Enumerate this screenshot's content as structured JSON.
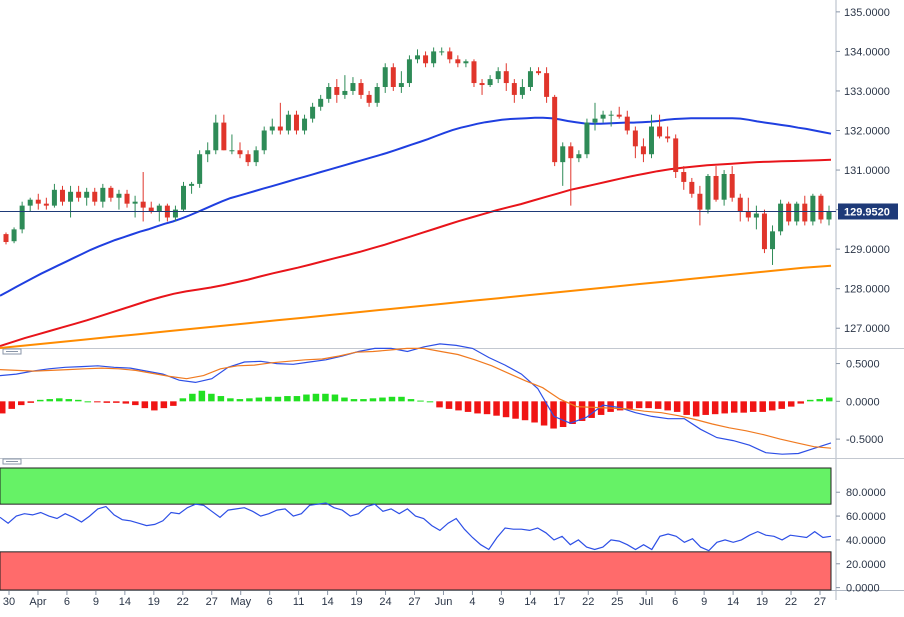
{
  "chart_data": [
    {
      "type": "candlestick",
      "panel": "price",
      "y_axis_ticks": [
        "135.0000",
        "134.0000",
        "133.0000",
        "132.0000",
        "131.0000",
        "130.0000",
        "129.0000",
        "128.0000",
        "127.0000"
      ],
      "ylim": [
        126.5,
        135.3
      ],
      "current_price": "129.9520",
      "x_axis_labels": [
        "30",
        "Apr",
        "6",
        "9",
        "14",
        "19",
        "22",
        "27",
        "May",
        "6",
        "11",
        "14",
        "19",
        "24",
        "27",
        "Jun",
        "4",
        "9",
        "14",
        "17",
        "22",
        "25",
        "Jul",
        "6",
        "9",
        "14",
        "19",
        "22",
        "27"
      ],
      "candles": [
        [
          129.38,
          129.42,
          129.12,
          129.18
        ],
        [
          129.2,
          129.55,
          129.15,
          129.5
        ],
        [
          129.5,
          130.2,
          129.4,
          130.1
        ],
        [
          130.1,
          130.3,
          129.95,
          130.25
        ],
        [
          130.25,
          130.4,
          130.0,
          130.15
        ],
        [
          130.15,
          130.3,
          130.0,
          130.1
        ],
        [
          130.1,
          130.65,
          130.05,
          130.5
        ],
        [
          130.5,
          130.6,
          130.1,
          130.2
        ],
        [
          130.2,
          130.6,
          129.8,
          130.45
        ],
        [
          130.45,
          130.6,
          130.2,
          130.3
        ],
        [
          130.3,
          130.55,
          130.1,
          130.45
        ],
        [
          130.45,
          130.55,
          130.1,
          130.2
        ],
        [
          130.2,
          130.65,
          130.05,
          130.55
        ],
        [
          130.55,
          130.6,
          130.2,
          130.3
        ],
        [
          130.3,
          130.5,
          130.0,
          130.4
        ],
        [
          130.4,
          130.5,
          130.05,
          130.15
        ],
        [
          130.15,
          130.35,
          129.8,
          130.2
        ],
        [
          130.2,
          130.95,
          129.7,
          130.05
        ],
        [
          130.05,
          130.2,
          129.9,
          129.95
        ],
        [
          129.95,
          130.15,
          129.7,
          130.1
        ],
        [
          130.1,
          130.15,
          129.7,
          129.8
        ],
        [
          129.8,
          130.1,
          129.7,
          130.0
        ],
        [
          130.0,
          130.7,
          129.95,
          130.6
        ],
        [
          130.6,
          130.7,
          130.4,
          130.65
        ],
        [
          130.65,
          131.5,
          130.55,
          131.4
        ],
        [
          131.4,
          131.7,
          131.2,
          131.5
        ],
        [
          131.5,
          132.4,
          131.4,
          132.2
        ],
        [
          132.2,
          132.4,
          131.5,
          131.5
        ],
        [
          131.5,
          131.9,
          131.4,
          131.5
        ],
        [
          131.5,
          131.7,
          131.3,
          131.4
        ],
        [
          131.4,
          131.5,
          131.1,
          131.2
        ],
        [
          131.2,
          131.6,
          131.1,
          131.5
        ],
        [
          131.5,
          132.1,
          131.4,
          132.0
        ],
        [
          132.0,
          132.3,
          131.9,
          132.1
        ],
        [
          132.1,
          132.7,
          131.9,
          132.0
        ],
        [
          132.0,
          132.5,
          131.9,
          132.4
        ],
        [
          132.4,
          132.5,
          131.9,
          132.0
        ],
        [
          132.0,
          132.4,
          131.9,
          132.3
        ],
        [
          132.3,
          132.7,
          132.2,
          132.6
        ],
        [
          132.6,
          132.9,
          132.5,
          132.8
        ],
        [
          132.8,
          133.2,
          132.7,
          133.1
        ],
        [
          133.1,
          133.3,
          132.7,
          132.9
        ],
        [
          132.9,
          133.4,
          132.8,
          133.0
        ],
        [
          133.0,
          133.35,
          132.9,
          133.2
        ],
        [
          133.2,
          133.3,
          132.8,
          132.9
        ],
        [
          132.9,
          133.0,
          132.6,
          132.7
        ],
        [
          132.7,
          133.2,
          132.6,
          133.1
        ],
        [
          133.1,
          133.7,
          132.95,
          133.6
        ],
        [
          133.6,
          133.7,
          133.0,
          133.1
        ],
        [
          133.1,
          133.5,
          132.95,
          133.2
        ],
        [
          133.2,
          133.9,
          133.1,
          133.8
        ],
        [
          133.8,
          134.05,
          133.7,
          133.9
        ],
        [
          133.9,
          134.0,
          133.6,
          133.7
        ],
        [
          133.7,
          134.1,
          133.6,
          134.0
        ],
        [
          134.0,
          134.1,
          133.9,
          134.0
        ],
        [
          134.0,
          134.1,
          133.7,
          133.8
        ],
        [
          133.8,
          133.9,
          133.6,
          133.7
        ],
        [
          133.7,
          133.8,
          133.6,
          133.75
        ],
        [
          133.75,
          133.8,
          133.1,
          133.2
        ],
        [
          133.2,
          133.3,
          132.9,
          133.15
        ],
        [
          133.15,
          133.4,
          133.1,
          133.3
        ],
        [
          133.3,
          133.6,
          133.2,
          133.5
        ],
        [
          133.5,
          133.7,
          133.0,
          133.2
        ],
        [
          133.2,
          133.3,
          132.7,
          132.9
        ],
        [
          132.9,
          133.3,
          132.8,
          133.1
        ],
        [
          133.1,
          133.6,
          133.0,
          133.5
        ],
        [
          133.5,
          133.6,
          133.4,
          133.45
        ],
        [
          133.45,
          133.6,
          132.7,
          132.85
        ],
        [
          132.85,
          132.9,
          131.1,
          131.2
        ],
        [
          131.2,
          131.7,
          130.6,
          131.6
        ],
        [
          131.6,
          131.7,
          130.1,
          131.3
        ],
        [
          131.3,
          131.5,
          131.2,
          131.4
        ],
        [
          131.4,
          132.3,
          131.3,
          132.2
        ],
        [
          132.2,
          132.7,
          132.0,
          132.3
        ],
        [
          132.3,
          132.5,
          132.2,
          132.4
        ],
        [
          132.4,
          132.5,
          132.1,
          132.4
        ],
        [
          132.4,
          132.6,
          132.3,
          132.35
        ],
        [
          132.35,
          132.5,
          131.9,
          132.0
        ],
        [
          132.0,
          132.1,
          131.3,
          131.6
        ],
        [
          131.6,
          131.8,
          131.2,
          131.4
        ],
        [
          131.4,
          132.4,
          131.3,
          132.1
        ],
        [
          132.1,
          132.4,
          131.8,
          131.85
        ],
        [
          131.85,
          132.1,
          131.7,
          131.8
        ],
        [
          131.8,
          131.9,
          130.8,
          130.95
        ],
        [
          130.95,
          131.1,
          130.5,
          130.7
        ],
        [
          130.7,
          130.8,
          130.3,
          130.4
        ],
        [
          130.4,
          130.6,
          129.6,
          130.0
        ],
        [
          130.0,
          130.9,
          129.9,
          130.85
        ],
        [
          130.85,
          131.1,
          130.2,
          130.25
        ],
        [
          130.25,
          131.0,
          130.1,
          130.9
        ],
        [
          130.9,
          131.1,
          130.2,
          130.3
        ],
        [
          130.3,
          130.4,
          129.7,
          129.95
        ],
        [
          129.95,
          130.3,
          129.7,
          129.8
        ],
        [
          129.8,
          130.1,
          129.5,
          129.9
        ],
        [
          129.9,
          130.0,
          128.9,
          129.0
        ],
        [
          129.0,
          129.6,
          128.6,
          129.45
        ],
        [
          129.45,
          130.25,
          129.35,
          130.15
        ],
        [
          130.15,
          130.2,
          129.6,
          129.7
        ],
        [
          129.7,
          130.2,
          129.6,
          130.15
        ],
        [
          130.15,
          130.35,
          129.6,
          129.7
        ],
        [
          129.7,
          130.4,
          129.6,
          130.35
        ],
        [
          130.35,
          130.4,
          129.65,
          129.75
        ],
        [
          129.75,
          130.1,
          129.6,
          129.95
        ]
      ],
      "series": [
        {
          "name": "",
          "color": "#1f3fe0",
          "values": [
            127.82,
            127.93,
            128.05,
            128.16,
            128.27,
            128.38,
            128.48,
            128.58,
            128.68,
            128.78,
            128.88,
            128.98,
            129.07,
            129.15,
            129.23,
            129.3,
            129.37,
            129.44,
            129.5,
            129.57,
            129.64,
            129.7,
            129.77,
            129.85,
            129.94,
            130.03,
            130.12,
            130.21,
            130.29,
            130.35,
            130.41,
            130.47,
            130.53,
            130.59,
            130.65,
            130.71,
            130.77,
            130.83,
            130.89,
            130.95,
            131.01,
            131.07,
            131.13,
            131.19,
            131.25,
            131.31,
            131.37,
            131.43,
            131.5,
            131.57,
            131.64,
            131.71,
            131.78,
            131.86,
            131.94,
            132.01,
            132.07,
            132.12,
            132.17,
            132.21,
            132.24,
            132.27,
            132.29,
            132.3,
            132.31,
            132.32,
            132.32,
            132.31,
            132.28,
            132.24,
            132.21,
            132.18,
            132.17,
            132.17,
            132.18,
            132.19,
            132.2,
            132.2,
            132.21,
            132.22,
            132.24,
            132.27,
            132.29,
            132.3,
            132.31,
            132.31,
            132.31,
            132.31,
            132.31,
            132.31,
            132.3,
            132.27,
            132.23,
            132.2,
            132.17,
            132.14,
            132.11,
            132.07,
            132.04,
            132.0,
            131.96,
            131.92
          ]
        },
        {
          "name": "",
          "color": "#e8141a",
          "values": [
            126.55,
            126.65,
            126.75,
            126.84,
            126.93,
            127.02,
            127.11,
            127.2,
            127.3,
            127.4,
            127.5,
            127.6,
            127.7,
            127.79,
            127.87,
            127.93,
            127.98,
            128.03,
            128.09,
            128.16,
            128.23,
            128.31,
            128.39,
            128.46,
            128.53,
            128.61,
            128.69,
            128.77,
            128.85,
            128.93,
            129.02,
            129.11,
            129.21,
            129.31,
            129.41,
            129.51,
            129.61,
            129.71,
            129.8,
            129.89,
            129.98,
            130.06,
            130.14,
            130.23,
            130.32,
            130.41,
            130.5,
            130.57,
            130.64,
            130.71,
            130.78,
            130.85,
            130.91,
            130.97,
            131.02,
            131.06,
            131.09,
            131.12,
            131.14,
            131.16,
            131.18,
            131.2,
            131.21,
            131.22,
            131.23,
            131.24,
            131.25,
            131.26
          ]
        },
        {
          "name": "",
          "color": "#ff8c00",
          "values": [
            126.5,
            126.57,
            126.64,
            126.71,
            126.78,
            126.85,
            126.92,
            126.99,
            127.06,
            127.13,
            127.2,
            127.27,
            127.34,
            127.41,
            127.48,
            127.55,
            127.62,
            127.69,
            127.76,
            127.83,
            127.9,
            127.97,
            128.04,
            128.11,
            128.18,
            128.25,
            128.32,
            128.39,
            128.46,
            128.53,
            128.58
          ]
        }
      ]
    },
    {
      "type": "macd",
      "panel": "macd",
      "y_axis_ticks": [
        "0.5000",
        "0.0000",
        "-0.5000"
      ],
      "ylim": [
        -0.75,
        0.6
      ],
      "macd": [
        0.34,
        0.36,
        0.4,
        0.43,
        0.45,
        0.46,
        0.47,
        0.45,
        0.44,
        0.4,
        0.36,
        0.28,
        0.25,
        0.3,
        0.45,
        0.52,
        0.53,
        0.5,
        0.49,
        0.52,
        0.55,
        0.6,
        0.66,
        0.7,
        0.7,
        0.66,
        0.72,
        0.76,
        0.74,
        0.7,
        0.58,
        0.48,
        0.36,
        0.17,
        -0.2,
        -0.29,
        -0.21,
        -0.05,
        -0.08,
        -0.15,
        -0.2,
        -0.23,
        -0.23,
        -0.37,
        -0.48,
        -0.52,
        -0.58,
        -0.68,
        -0.7,
        -0.69,
        -0.62,
        -0.55
      ],
      "signal": [
        0.42,
        0.41,
        0.4,
        0.41,
        0.42,
        0.43,
        0.44,
        0.43,
        0.41,
        0.37,
        0.33,
        0.3,
        0.34,
        0.43,
        0.47,
        0.48,
        0.51,
        0.53,
        0.55,
        0.56,
        0.6,
        0.65,
        0.66,
        0.68,
        0.7,
        0.7,
        0.66,
        0.62,
        0.55,
        0.47,
        0.37,
        0.27,
        0.18,
        0.03,
        -0.07,
        -0.08,
        -0.09,
        -0.1,
        -0.13,
        -0.15,
        -0.19,
        -0.24,
        -0.3,
        -0.35,
        -0.39,
        -0.44,
        -0.5,
        -0.55,
        -0.6,
        -0.62
      ],
      "histogram": [
        -0.16,
        -0.1,
        -0.05,
        -0.02,
        0.02,
        0.03,
        0.04,
        0.03,
        0.02,
        0.0,
        -0.01,
        -0.02,
        -0.02,
        -0.03,
        -0.05,
        -0.09,
        -0.12,
        -0.09,
        -0.06,
        0.04,
        0.1,
        0.14,
        0.1,
        0.07,
        0.04,
        0.03,
        0.04,
        0.05,
        0.06,
        0.06,
        0.07,
        0.07,
        0.09,
        0.1,
        0.1,
        0.09,
        0.05,
        0.03,
        0.03,
        0.04,
        0.05,
        0.06,
        0.06,
        0.03,
        0.01,
        0.0,
        -0.08,
        -0.1,
        -0.12,
        -0.14,
        -0.16,
        -0.17,
        -0.19,
        -0.21,
        -0.23,
        -0.25,
        -0.28,
        -0.32,
        -0.36,
        -0.34,
        -0.3,
        -0.26,
        -0.22,
        -0.18,
        -0.14,
        -0.12,
        -0.1,
        -0.09,
        -0.09,
        -0.1,
        -0.12,
        -0.14,
        -0.18,
        -0.2,
        -0.18,
        -0.17,
        -0.16,
        -0.15,
        -0.15,
        -0.14,
        -0.14,
        -0.12,
        -0.1,
        -0.07,
        -0.03,
        0.02,
        0.03,
        0.05
      ]
    },
    {
      "type": "line",
      "panel": "rsi",
      "y_axis_ticks": [
        "80.0000",
        "60.0000",
        "40.0000",
        "20.0000",
        "0.0000"
      ],
      "ylim": [
        -2,
        102
      ],
      "bands": {
        "upper": 70,
        "lower": 30,
        "upper_color": "#66f266",
        "lower_color": "#ff6b6b"
      },
      "values": [
        59,
        54,
        60,
        62,
        61,
        63,
        60,
        58,
        62,
        59,
        55,
        60,
        66,
        68,
        61,
        57,
        56,
        54,
        52,
        53,
        56,
        63,
        62,
        67,
        70,
        69,
        64,
        59,
        65,
        66,
        67,
        64,
        60,
        62,
        65,
        66,
        60,
        62,
        69,
        70,
        71,
        67,
        65,
        60,
        62,
        68,
        70,
        64,
        66,
        62,
        66,
        60,
        58,
        52,
        48,
        54,
        58,
        49,
        42,
        36,
        32,
        42,
        50,
        49,
        49,
        48,
        50,
        46,
        40,
        43,
        36,
        40,
        34,
        32,
        34,
        40,
        39,
        36,
        32,
        36,
        32,
        43,
        45,
        43,
        38,
        41,
        34,
        31,
        38,
        40,
        38,
        40,
        44,
        47,
        44,
        43,
        40,
        44,
        43,
        42,
        47,
        42,
        43
      ]
    }
  ]
}
